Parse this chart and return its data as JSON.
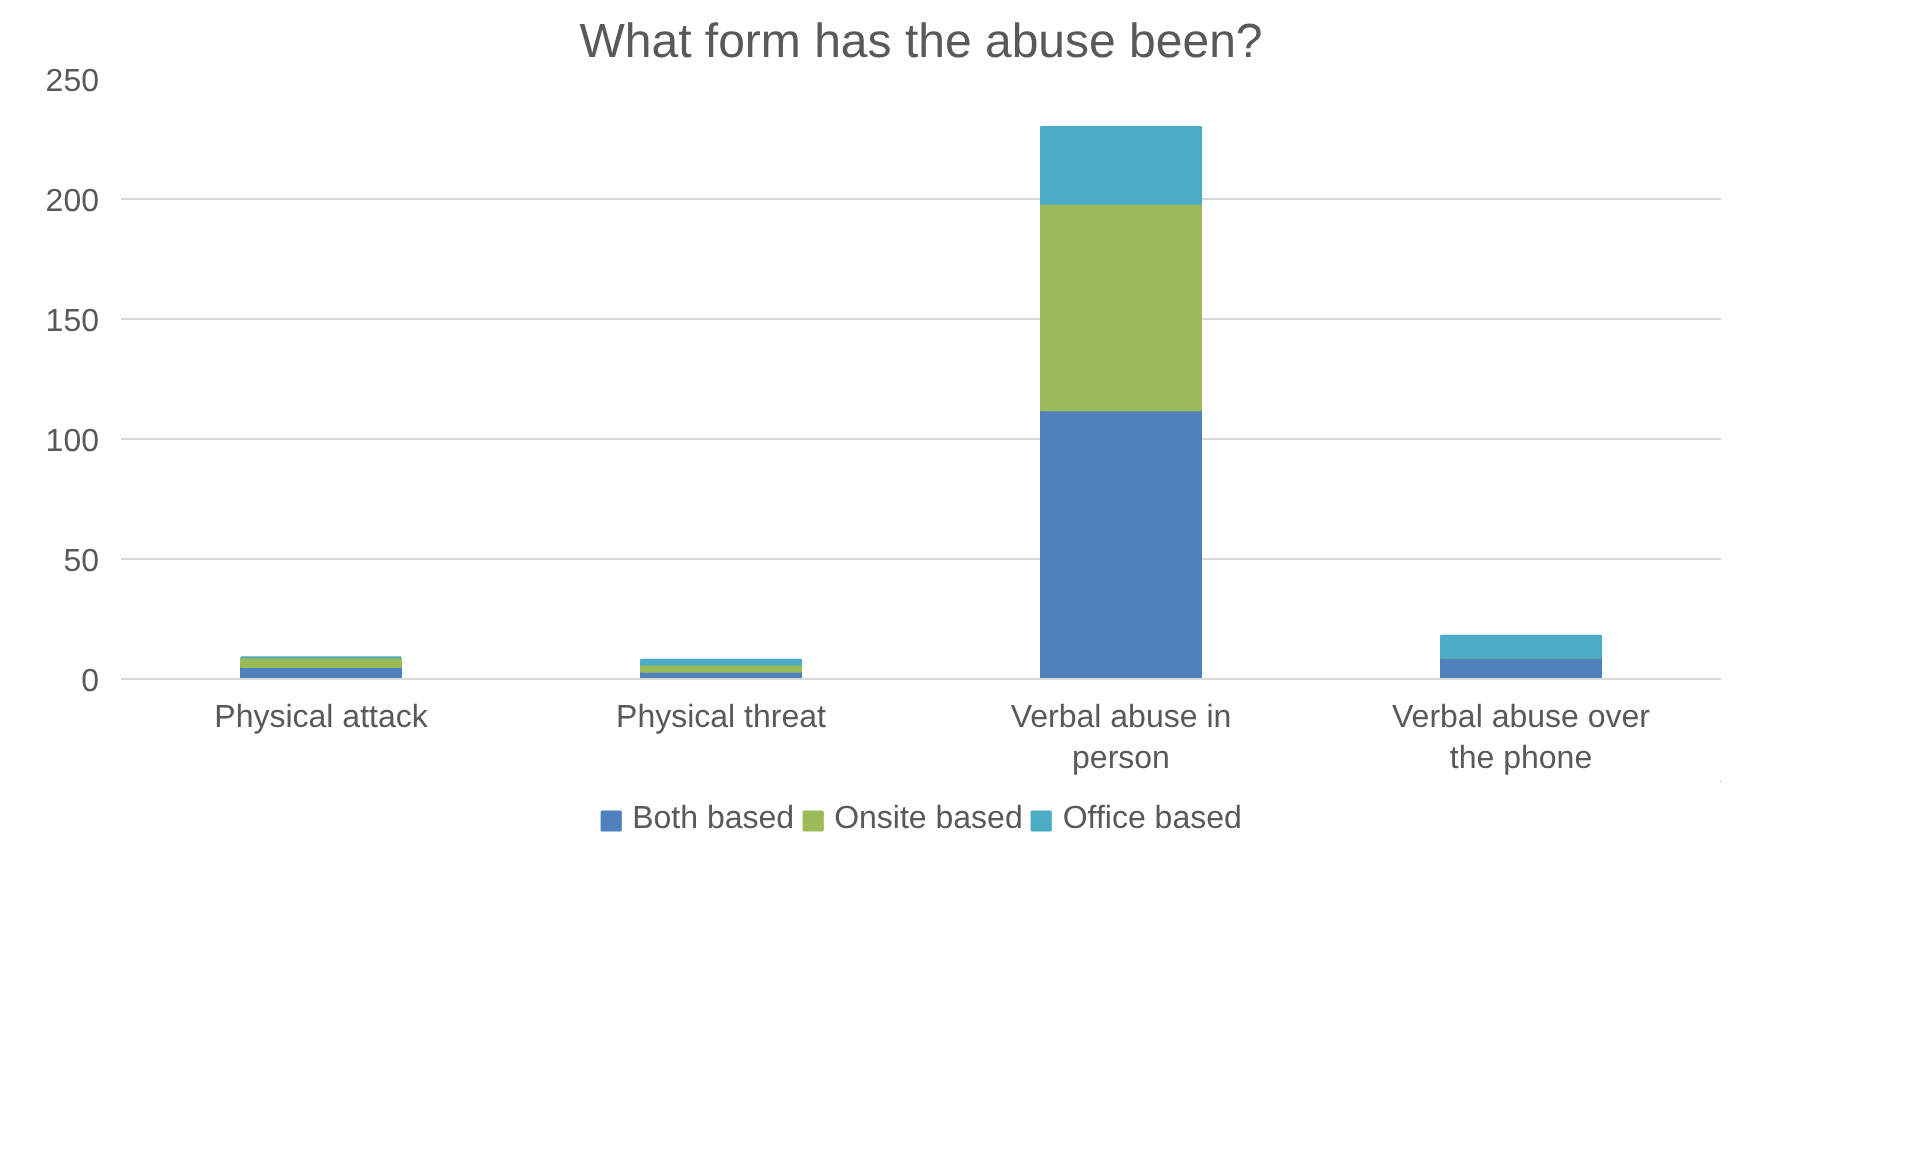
{
  "chart_data": {
    "type": "bar",
    "stacked": true,
    "title": "What form has the abuse been?",
    "categories": [
      "Physical attack",
      "Physical threat",
      "Verbal abuse in person",
      "Verbal abuse over the phone"
    ],
    "series": [
      {
        "name": "Both based",
        "color": "#4f81bd",
        "values": [
          5,
          3,
          112,
          9
        ]
      },
      {
        "name": "Onsite based",
        "color": "#9bbb59",
        "values": [
          4,
          3,
          86,
          0
        ]
      },
      {
        "name": "Office based",
        "color": "#4bacc6",
        "values": [
          0,
          2,
          32,
          9
        ]
      }
    ],
    "ylim": [
      0,
      250
    ],
    "yticks": [
      0,
      50,
      100,
      150,
      200,
      250
    ],
    "grid": "y",
    "legend": "bottom"
  }
}
